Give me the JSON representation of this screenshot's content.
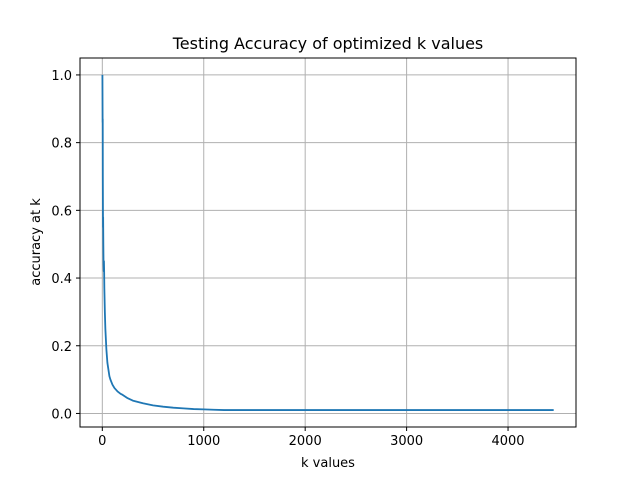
{
  "chart_data": {
    "type": "line",
    "title": "Testing Accuracy of optimized k values",
    "xlabel": "k values",
    "ylabel": "accuracy at k",
    "xlim": [
      -220,
      4670
    ],
    "ylim": [
      -0.04,
      1.05
    ],
    "xticks": [
      0,
      1000,
      2000,
      3000,
      4000
    ],
    "yticks": [
      0.0,
      0.2,
      0.4,
      0.6,
      0.8,
      1.0
    ],
    "grid": true,
    "legend": "none",
    "color": "#1f77b4",
    "series": [
      {
        "x": [
          1,
          3,
          4,
          5,
          7,
          8,
          10,
          12,
          14,
          16,
          18,
          20,
          25,
          30,
          40,
          50,
          60,
          70,
          80,
          100,
          120,
          150,
          180,
          200,
          250,
          300,
          400,
          500,
          600,
          700,
          800,
          900,
          1000,
          1100,
          1200,
          1500,
          2000,
          2500,
          3000,
          3500,
          4000,
          4450
        ],
        "y": [
          1.0,
          0.86,
          0.87,
          0.7,
          0.55,
          0.58,
          0.5,
          0.44,
          0.42,
          0.45,
          0.42,
          0.37,
          0.3,
          0.25,
          0.19,
          0.15,
          0.13,
          0.11,
          0.1,
          0.085,
          0.075,
          0.065,
          0.058,
          0.055,
          0.045,
          0.038,
          0.03,
          0.024,
          0.02,
          0.017,
          0.015,
          0.013,
          0.012,
          0.011,
          0.01,
          0.01,
          0.01,
          0.01,
          0.01,
          0.01,
          0.01,
          0.01
        ]
      }
    ]
  }
}
